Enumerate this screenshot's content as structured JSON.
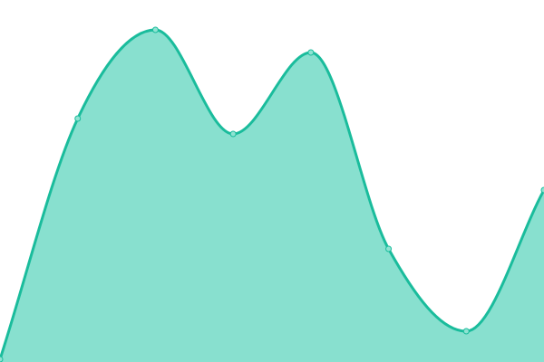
{
  "chart_data": {
    "type": "area",
    "x": [
      0,
      1,
      2,
      3,
      4,
      5,
      6,
      7
    ],
    "values": [
      3,
      269,
      367,
      252,
      342,
      125,
      34,
      190
    ],
    "ylim": [
      0,
      400
    ],
    "xlim": [
      0,
      7
    ],
    "grid": false,
    "interpolation": "smooth",
    "colors": {
      "line": "#1abc9c",
      "fill": "#88e0cf",
      "point_fill": "#8fe3d2"
    }
  }
}
